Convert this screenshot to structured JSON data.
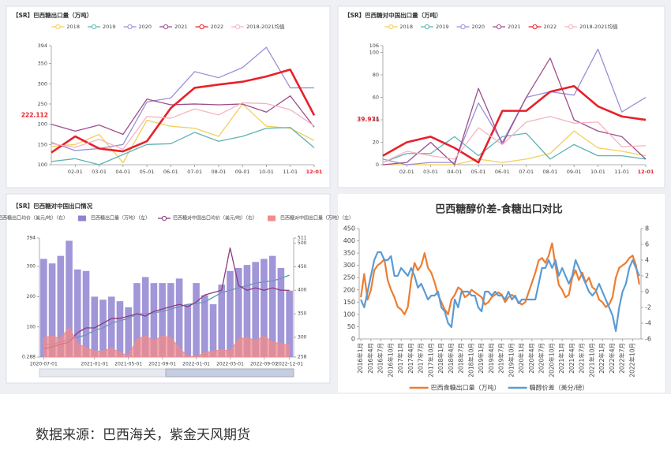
{
  "chart_data": [
    {
      "type": "line",
      "title": "【SR】巴西糖出口量（万吨）",
      "categories": [
        null,
        "02-01",
        "03-01",
        "04-01",
        "05-01",
        "06-01",
        "07-01",
        "08-01",
        "09-01",
        "10-01",
        "11-01",
        "12-01"
      ],
      "ylim": [
        100,
        394
      ],
      "yticks": [
        100,
        150,
        200,
        250,
        300,
        350,
        394
      ],
      "grid": false,
      "pointer": 222.112,
      "series": [
        {
          "name": "2018",
          "color": "#f2cf5b",
          "values": [
            145,
            150,
            175,
            105,
            210,
            195,
            190,
            170,
            250,
            195,
            190,
            160
          ]
        },
        {
          "name": "2019",
          "color": "#5fb3b3",
          "values": [
            108,
            115,
            100,
            125,
            150,
            152,
            180,
            158,
            170,
            190,
            192,
            142
          ]
        },
        {
          "name": "2020",
          "color": "#9b8fd6",
          "values": [
            155,
            135,
            140,
            150,
            255,
            265,
            330,
            315,
            340,
            390,
            290,
            290
          ]
        },
        {
          "name": "2021",
          "color": "#9c4f8c",
          "values": [
            200,
            183,
            198,
            175,
            262,
            248,
            250,
            248,
            250,
            230,
            270,
            193
          ]
        },
        {
          "name": "2022",
          "color": "#e8202a",
          "width": 2.6,
          "values": [
            130,
            170,
            140,
            133,
            158,
            240,
            290,
            298,
            305,
            318,
            335,
            222.112
          ]
        },
        {
          "name": "2018-2021均值",
          "color": "#f7b3be",
          "values": [
            152,
            143,
            163,
            138,
            219,
            215,
            238,
            223,
            253,
            251,
            236,
            196
          ]
        }
      ]
    },
    {
      "type": "line",
      "title": "【SR】巴西糖对中国出口量（万吨）",
      "categories": [
        null,
        "02-01",
        "03-01",
        "04-01",
        "05-01",
        "06-01",
        "07-01",
        "08-01",
        "09-01",
        "10-01",
        "11-01",
        "12-01"
      ],
      "ylim": [
        0,
        106
      ],
      "yticks": [
        0,
        20,
        40,
        60,
        80,
        100,
        106
      ],
      "grid": false,
      "pointer": 39.971,
      "series": [
        {
          "name": "2018",
          "color": "#f2cf5b",
          "values": [
            0,
            0,
            0,
            0,
            5,
            2,
            5,
            10,
            30,
            15,
            12,
            8
          ]
        },
        {
          "name": "2019",
          "color": "#5fb3b3",
          "values": [
            2,
            10,
            10,
            25,
            8,
            25,
            28,
            5,
            18,
            8,
            8,
            5
          ]
        },
        {
          "name": "2020",
          "color": "#9b8fd6",
          "values": [
            5,
            0,
            2,
            2,
            55,
            20,
            60,
            65,
            62,
            103,
            47,
            60
          ]
        },
        {
          "name": "2021",
          "color": "#9c4f8c",
          "values": [
            0,
            2,
            20,
            0,
            68,
            18,
            60,
            95,
            40,
            30,
            25,
            5
          ]
        },
        {
          "name": "2022",
          "color": "#e8202a",
          "width": 2.6,
          "values": [
            8,
            20,
            25,
            15,
            2,
            48,
            48,
            65,
            70,
            52,
            43,
            39.971
          ]
        },
        {
          "name": "2018-2021均值",
          "color": "#f7b3be",
          "values": [
            2,
            12,
            8,
            5,
            33,
            18,
            38,
            43,
            37,
            38,
            16,
            17
          ]
        }
      ]
    },
    {
      "type": "bar",
      "title": "【SR】巴西糖对中国出口情况",
      "categories": [
        "2020-07-01",
        null,
        null,
        null,
        null,
        null,
        "2021-01-01",
        null,
        null,
        null,
        "2021-05-01",
        null,
        null,
        null,
        "2021-09-01",
        null,
        null,
        null,
        "2022-01-01",
        null,
        null,
        null,
        "2022-05-01",
        null,
        null,
        null,
        "2022-09-01",
        null,
        null,
        "2022-12-01"
      ],
      "ylim": [
        0.288,
        394
      ],
      "yticks": [
        0.288,
        100,
        200,
        300,
        394
      ],
      "y2lim": [
        258,
        511
      ],
      "y2ticks": [
        258,
        300,
        350,
        400,
        450,
        500,
        511
      ],
      "grid": false,
      "series": [
        {
          "name": "巴西糖出口均价（美元/吨）（右）",
          "type": "line",
          "axis": "y2",
          "color": "#3fa7a0",
          "values": [
            285,
            285,
            290,
            295,
            300,
            305,
            315,
            320,
            330,
            335,
            340,
            350,
            350,
            352,
            355,
            360,
            365,
            370,
            372,
            375,
            385,
            395,
            400,
            405,
            410,
            415,
            418,
            420,
            425,
            432
          ]
        },
        {
          "name": "巴西糖出口量（万吨）（左）",
          "type": "bar",
          "color": "#8f84d1",
          "values": [
            325,
            310,
            335,
            385,
            290,
            285,
            200,
            190,
            200,
            185,
            165,
            245,
            265,
            245,
            245,
            245,
            260,
            175,
            245,
            205,
            175,
            240,
            285,
            295,
            305,
            315,
            325,
            335,
            295,
            220
          ]
        },
        {
          "name": "巴西糖对中国出口均价（美元/吨）（右）",
          "type": "line",
          "axis": "y2",
          "color": "#8b3a7e",
          "values": [
            275,
            280,
            285,
            290,
            310,
            320,
            320,
            330,
            340,
            340,
            345,
            350,
            345,
            355,
            360,
            365,
            370,
            365,
            375,
            390,
            395,
            400,
            490,
            410,
            400,
            405,
            400,
            405,
            400,
            400
          ]
        },
        {
          "name": "巴西糖对中国出口量（万吨）（左）",
          "type": "area",
          "color": "#f28b8b",
          "values": [
            65,
            70,
            60,
            100,
            45,
            30,
            20,
            20,
            30,
            15,
            5,
            60,
            70,
            55,
            70,
            65,
            30,
            2,
            2,
            15,
            20,
            25,
            20,
            60,
            65,
            55,
            70,
            50,
            45,
            40
          ]
        }
      ]
    },
    {
      "type": "line",
      "title": "巴西糖醇价差-食糖出口对比",
      "categories": [
        "2016年1月",
        null,
        null,
        "2016年4月",
        null,
        null,
        "2016年7月",
        null,
        null,
        "2016年10月",
        null,
        null,
        "2017年1月",
        null,
        null,
        "2017年4月",
        null,
        null,
        "2017年7月",
        null,
        null,
        "2017年10月",
        null,
        null,
        "2018年1月",
        null,
        null,
        "2018年4月",
        null,
        null,
        "2018年7月",
        null,
        null,
        "2018年10月",
        null,
        null,
        "2019年1月",
        null,
        null,
        "2019年4月",
        null,
        null,
        "2019年7月",
        null,
        null,
        "2019年10月",
        null,
        null,
        "2020年1月",
        null,
        null,
        "2020年4月",
        null,
        null,
        "2020年7月",
        null,
        null,
        "2020年10月",
        null,
        null,
        "2021年1月",
        null,
        null,
        "2021年4月",
        null,
        null,
        "2021年7月",
        null,
        null,
        "2021年10月",
        null,
        null,
        "2022年1月",
        null,
        null,
        "2022年4月",
        null,
        null,
        "2022年7月",
        null,
        null,
        "2022年10月",
        null,
        null
      ],
      "ylim": [
        0,
        450
      ],
      "yticks": [
        0,
        50,
        100,
        150,
        200,
        250,
        300,
        350,
        400,
        450
      ],
      "y2lim": [
        -6,
        8
      ],
      "y2ticks": [
        -6,
        -4,
        -2,
        0,
        2,
        4,
        6,
        8
      ],
      "grid": false,
      "series": [
        {
          "name": "巴西食糖出口量（万吨）",
          "color": "#ed7d31",
          "width": 2.2,
          "values": [
            170,
            265,
            160,
            200,
            280,
            300,
            310,
            325,
            240,
            200,
            170,
            130,
            120,
            100,
            130,
            240,
            310,
            280,
            300,
            350,
            290,
            270,
            230,
            180,
            150,
            120,
            100,
            160,
            180,
            210,
            200,
            170,
            180,
            200,
            190,
            180,
            170,
            140,
            150,
            170,
            180,
            190,
            180,
            150,
            170,
            180,
            170,
            150,
            140,
            150,
            190,
            230,
            270,
            320,
            330,
            310,
            340,
            390,
            300,
            220,
            200,
            170,
            180,
            250,
            280,
            240,
            270,
            230,
            250,
            210,
            200,
            160,
            150,
            130,
            140,
            170,
            250,
            290,
            300,
            310,
            330,
            340,
            300,
            222
          ]
        },
        {
          "name": "糖醇价差（美分/磅）",
          "axis": "y2",
          "color": "#5b9bd5",
          "width": 2.2,
          "values": [
            -1,
            -2,
            0,
            2,
            4,
            5,
            5,
            4,
            4,
            4.5,
            2,
            2,
            3,
            2.5,
            2,
            3,
            2,
            0.5,
            1,
            0,
            -1,
            -0.5,
            -0.5,
            0,
            -2,
            -2.5,
            -4,
            -4.5,
            -1,
            -2,
            0,
            0,
            0,
            -0.5,
            -0.5,
            -2,
            -2.5,
            0,
            0,
            -0.5,
            0,
            -0.5,
            -0.5,
            -1,
            0,
            -1,
            -0.5,
            -1.5,
            -1,
            -1,
            -1,
            -1,
            -1,
            1,
            3,
            3,
            4,
            3,
            4,
            2,
            3,
            2,
            1,
            2,
            4,
            3,
            2,
            1,
            0,
            -0.5,
            0,
            1,
            0,
            -1,
            -2,
            -3,
            -5,
            -2,
            0,
            1,
            3,
            4,
            3,
            2
          ]
        }
      ]
    }
  ],
  "source": "数据来源：巴西海关，紫金天风期货"
}
